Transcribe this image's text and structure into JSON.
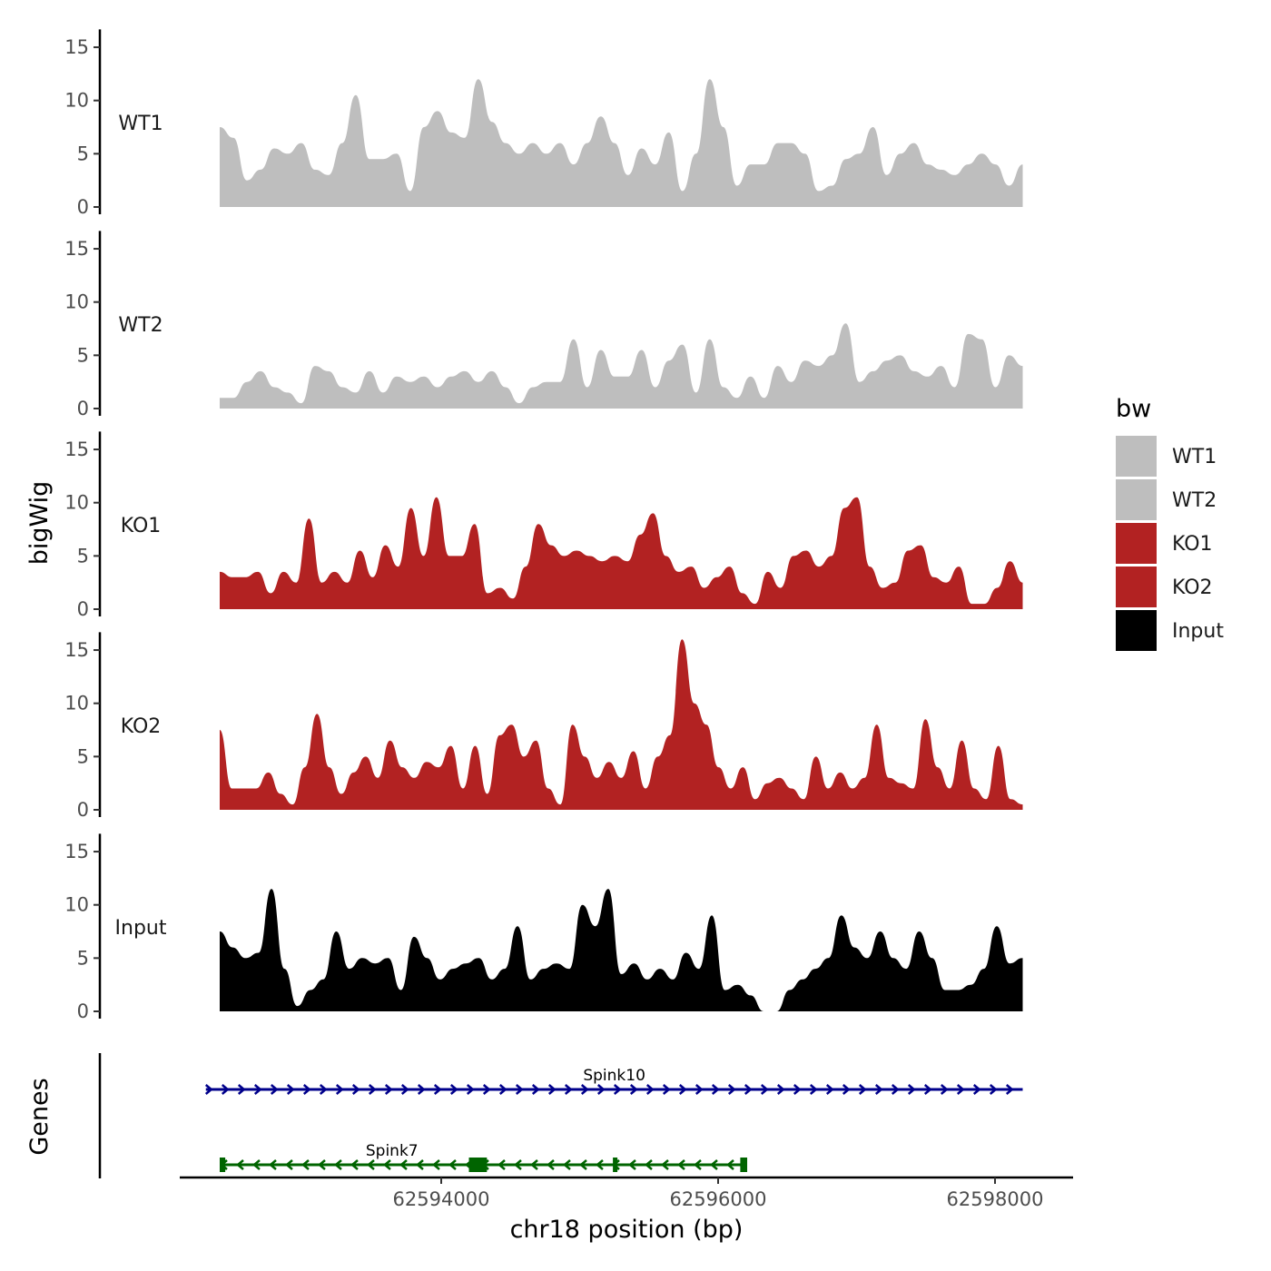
{
  "chart_data": {
    "type": "area",
    "chromosome": "chr18",
    "xlabel": "chr18 position (bp)",
    "ylabel": "bigWig",
    "genes_label": "Genes",
    "xlim": [
      62591900,
      62598300
    ],
    "ylim": [
      0,
      16
    ],
    "x_ticks": [
      62594000,
      62596000,
      62598000
    ],
    "x_tick_labels": [
      "62594000",
      "62596000",
      "62598000"
    ],
    "y_ticks": [
      0,
      5,
      10,
      15
    ],
    "y_tick_labels": [
      "0",
      "5",
      "10",
      "15"
    ],
    "legend": {
      "title": "bw",
      "placement": "right",
      "entries": [
        {
          "label": "WT1",
          "color": "#bebebe"
        },
        {
          "label": "WT2",
          "color": "#bebebe"
        },
        {
          "label": "KO1",
          "color": "#b22222"
        },
        {
          "label": "KO2",
          "color": "#b22222"
        },
        {
          "label": "Input",
          "color": "#000000"
        }
      ]
    },
    "series": [
      {
        "name": "WT1",
        "color": "#bebebe",
        "x_start": 62592400,
        "x_end": 62598200,
        "values": [
          7.5,
          6.5,
          2.5,
          3.5,
          5.5,
          5,
          6,
          3.5,
          3,
          6,
          10.5,
          4.5,
          4.5,
          5,
          1.5,
          7.5,
          9,
          7,
          6.5,
          12,
          8,
          6,
          5,
          6,
          5,
          6,
          4,
          6,
          8.5,
          6,
          3,
          5.5,
          4,
          7,
          1.5,
          5,
          12,
          7.5,
          2,
          4,
          4,
          6,
          6,
          5,
          1.5,
          2,
          4.5,
          5,
          7.5,
          3,
          5,
          6,
          4,
          3.5,
          3,
          4,
          5,
          4,
          2,
          4
        ]
      },
      {
        "name": "WT2",
        "color": "#bebebe",
        "x_start": 62592400,
        "x_end": 62598200,
        "values": [
          1,
          1,
          2.5,
          3.5,
          2,
          1.5,
          0.5,
          4,
          3.5,
          2,
          1.5,
          3.5,
          1.5,
          3,
          2.5,
          3,
          2,
          3,
          3.5,
          2.5,
          3.5,
          2,
          0.5,
          2,
          2.5,
          2.5,
          6.5,
          2,
          5.5,
          3,
          3,
          5.5,
          2,
          4.5,
          6,
          1.5,
          6.5,
          2,
          1,
          3,
          1,
          4,
          2.5,
          4.5,
          4,
          5,
          8,
          2.5,
          3.5,
          4.5,
          5,
          3.5,
          3,
          4,
          2,
          7,
          6.5,
          2,
          5,
          4
        ]
      },
      {
        "name": "KO1",
        "color": "#b22222",
        "x_start": 62592400,
        "x_end": 62598200,
        "values": [
          3.5,
          3,
          3,
          3.5,
          1.5,
          3.5,
          2.5,
          8.5,
          2.5,
          3.5,
          2.5,
          5.5,
          3,
          6,
          4,
          9.5,
          5,
          10.5,
          5,
          5,
          8,
          1.5,
          2,
          1,
          4,
          8,
          6,
          5,
          5.5,
          5,
          4.5,
          5,
          4.5,
          7,
          9,
          5,
          3.5,
          4,
          2,
          3,
          4,
          1.5,
          0.5,
          3.5,
          2,
          5,
          5.5,
          4,
          5,
          9.5,
          10.5,
          4,
          2,
          2.5,
          5.5,
          6,
          3,
          2.5,
          4,
          0.5,
          0.5,
          2,
          4.5,
          2.5
        ]
      },
      {
        "name": "KO2",
        "color": "#b22222",
        "x_start": 62592400,
        "x_end": 62598200,
        "values": [
          7.5,
          2,
          2,
          2,
          3.5,
          1.5,
          0.5,
          4,
          9,
          4,
          1.5,
          3.5,
          5,
          3,
          6.5,
          4,
          3,
          4.5,
          4,
          6,
          2,
          6,
          1.5,
          7,
          8,
          5,
          6.5,
          2,
          0.5,
          8,
          5,
          3,
          4.5,
          3,
          5.5,
          2,
          5,
          7,
          16,
          10,
          8,
          4,
          2,
          4,
          1,
          2.5,
          3,
          2,
          1,
          5,
          2,
          3.5,
          2,
          3,
          8,
          3,
          2.5,
          2,
          8.5,
          4,
          2,
          6.5,
          2,
          1,
          6,
          1,
          0.5
        ]
      },
      {
        "name": "Input",
        "color": "#000000",
        "x_start": 62592400,
        "x_end": 62598200,
        "values": [
          7.5,
          6,
          5,
          5.5,
          11.5,
          4,
          0.5,
          2,
          3,
          7.5,
          4,
          5,
          4.5,
          5,
          2,
          7,
          5,
          3,
          4,
          4.5,
          5,
          3,
          4,
          8,
          3,
          4,
          4.5,
          4,
          10,
          8,
          11.5,
          3.5,
          4.5,
          3,
          4,
          3,
          5.5,
          4,
          9,
          2,
          2.5,
          1.5,
          0,
          0,
          2,
          3,
          4,
          5,
          9,
          6,
          5,
          7.5,
          5,
          4,
          7.5,
          5,
          2,
          2,
          2.5,
          4,
          8,
          4.5,
          5
        ]
      }
    ],
    "genes": [
      {
        "name": "Spink10",
        "start": 62592300,
        "end": 62598200,
        "strand": "+",
        "color": "#00008b",
        "exons": []
      },
      {
        "name": "Spink7",
        "start": 62592400,
        "end": 62596200,
        "strand": "-",
        "color": "#006400",
        "exons": [
          [
            62592400,
            62592440
          ],
          [
            62594200,
            62594330
          ],
          [
            62595240,
            62595270
          ],
          [
            62596160,
            62596210
          ]
        ]
      }
    ]
  }
}
